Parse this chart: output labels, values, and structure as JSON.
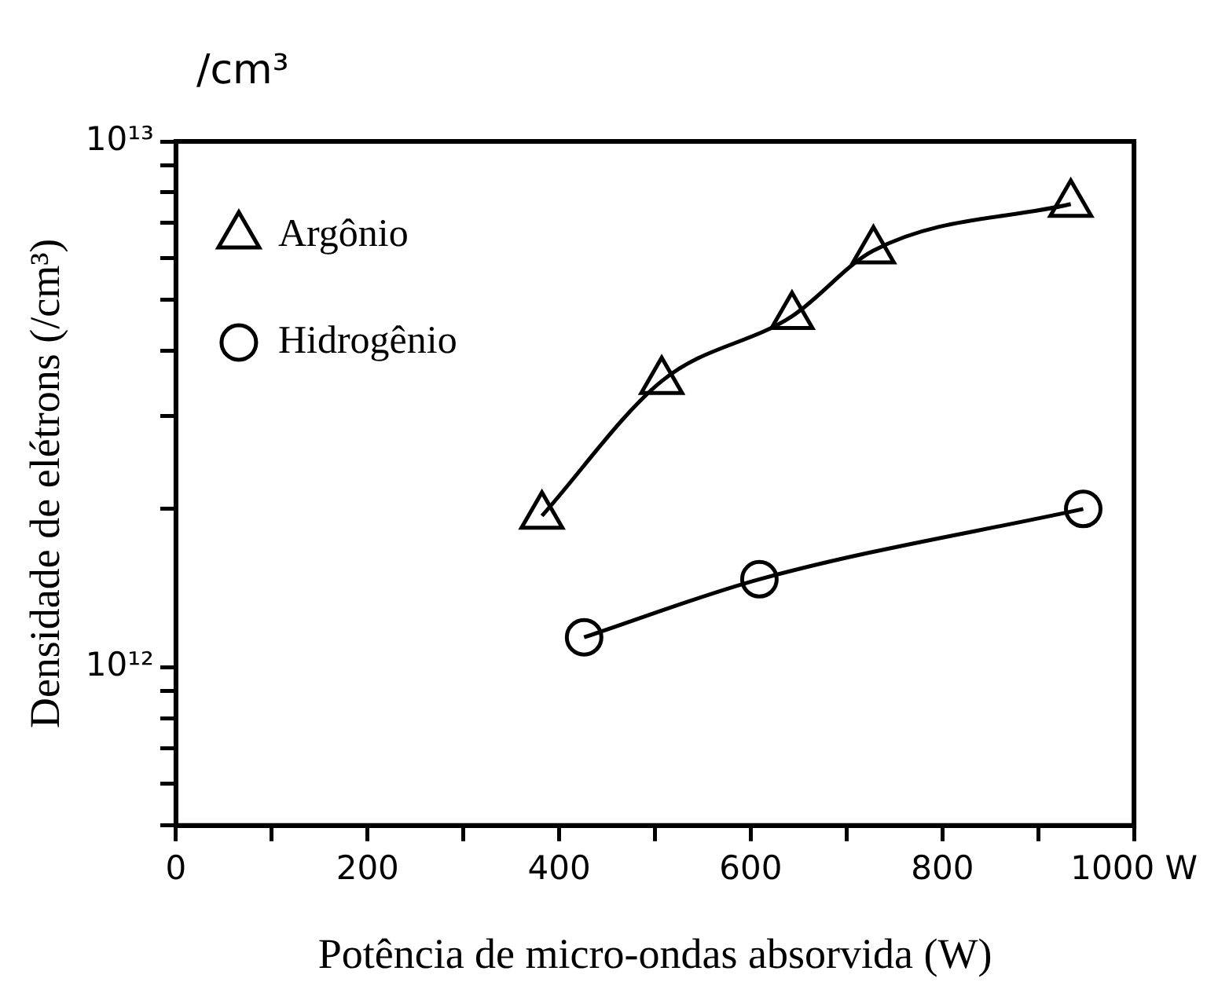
{
  "chart_data": {
    "type": "line",
    "xlabel": "Potência de micro-ondas absorvida (W)",
    "ylabel": "Densidade de elétrons (/cm³)",
    "annotations": [
      "/cm³"
    ],
    "log": "y",
    "xlim": [
      0,
      1000
    ],
    "ylim": [
      500000000000.0,
      10000000000000.0
    ],
    "xticks": [
      0,
      {
        "value": 100,
        "label": null
      },
      200,
      {
        "value": 300,
        "label": null
      },
      400,
      {
        "value": 500,
        "label": null
      },
      600,
      {
        "value": 700,
        "label": null
      },
      800,
      {
        "value": 900,
        "label": null
      },
      {
        "value": 1000,
        "label": "1000 W"
      }
    ],
    "yticks": [
      {
        "value": 500000000000.0,
        "label": null
      },
      {
        "value": 600000000000.0,
        "label": null
      },
      {
        "value": 700000000000.0,
        "label": null
      },
      {
        "value": 800000000000.0,
        "label": null
      },
      {
        "value": 900000000000.0,
        "label": null
      },
      {
        "value": 1000000000000.0,
        "label": "10¹²"
      },
      {
        "value": 2000000000000.0,
        "label": null
      },
      {
        "value": 3000000000000.0,
        "label": null
      },
      {
        "value": 4000000000000.0,
        "label": null
      },
      {
        "value": 5000000000000.0,
        "label": null
      },
      {
        "value": 6000000000000.0,
        "label": null
      },
      {
        "value": 7000000000000.0,
        "label": null
      },
      {
        "value": 8000000000000.0,
        "label": null
      },
      {
        "value": 9000000000000.0,
        "label": null
      },
      {
        "value": 10000000000000.0,
        "label": "10¹³"
      }
    ],
    "grid": false,
    "legend": "top left",
    "line_style": "solid",
    "series": [
      {
        "name": "Argônio",
        "color": "#000000",
        "marker": "triangle",
        "x": [
          382,
          507,
          643,
          728,
          934
        ],
        "values": [
          1940000000000.0,
          3500000000000.0,
          4650000000000.0,
          6200000000000.0,
          7600000000000.0
        ]
      },
      {
        "name": "Hidrogênio",
        "color": "#000000",
        "marker": "circle",
        "x": [
          426,
          609,
          947
        ],
        "values": [
          1140000000000.0,
          1470000000000.0,
          2000000000000.0
        ]
      }
    ]
  }
}
